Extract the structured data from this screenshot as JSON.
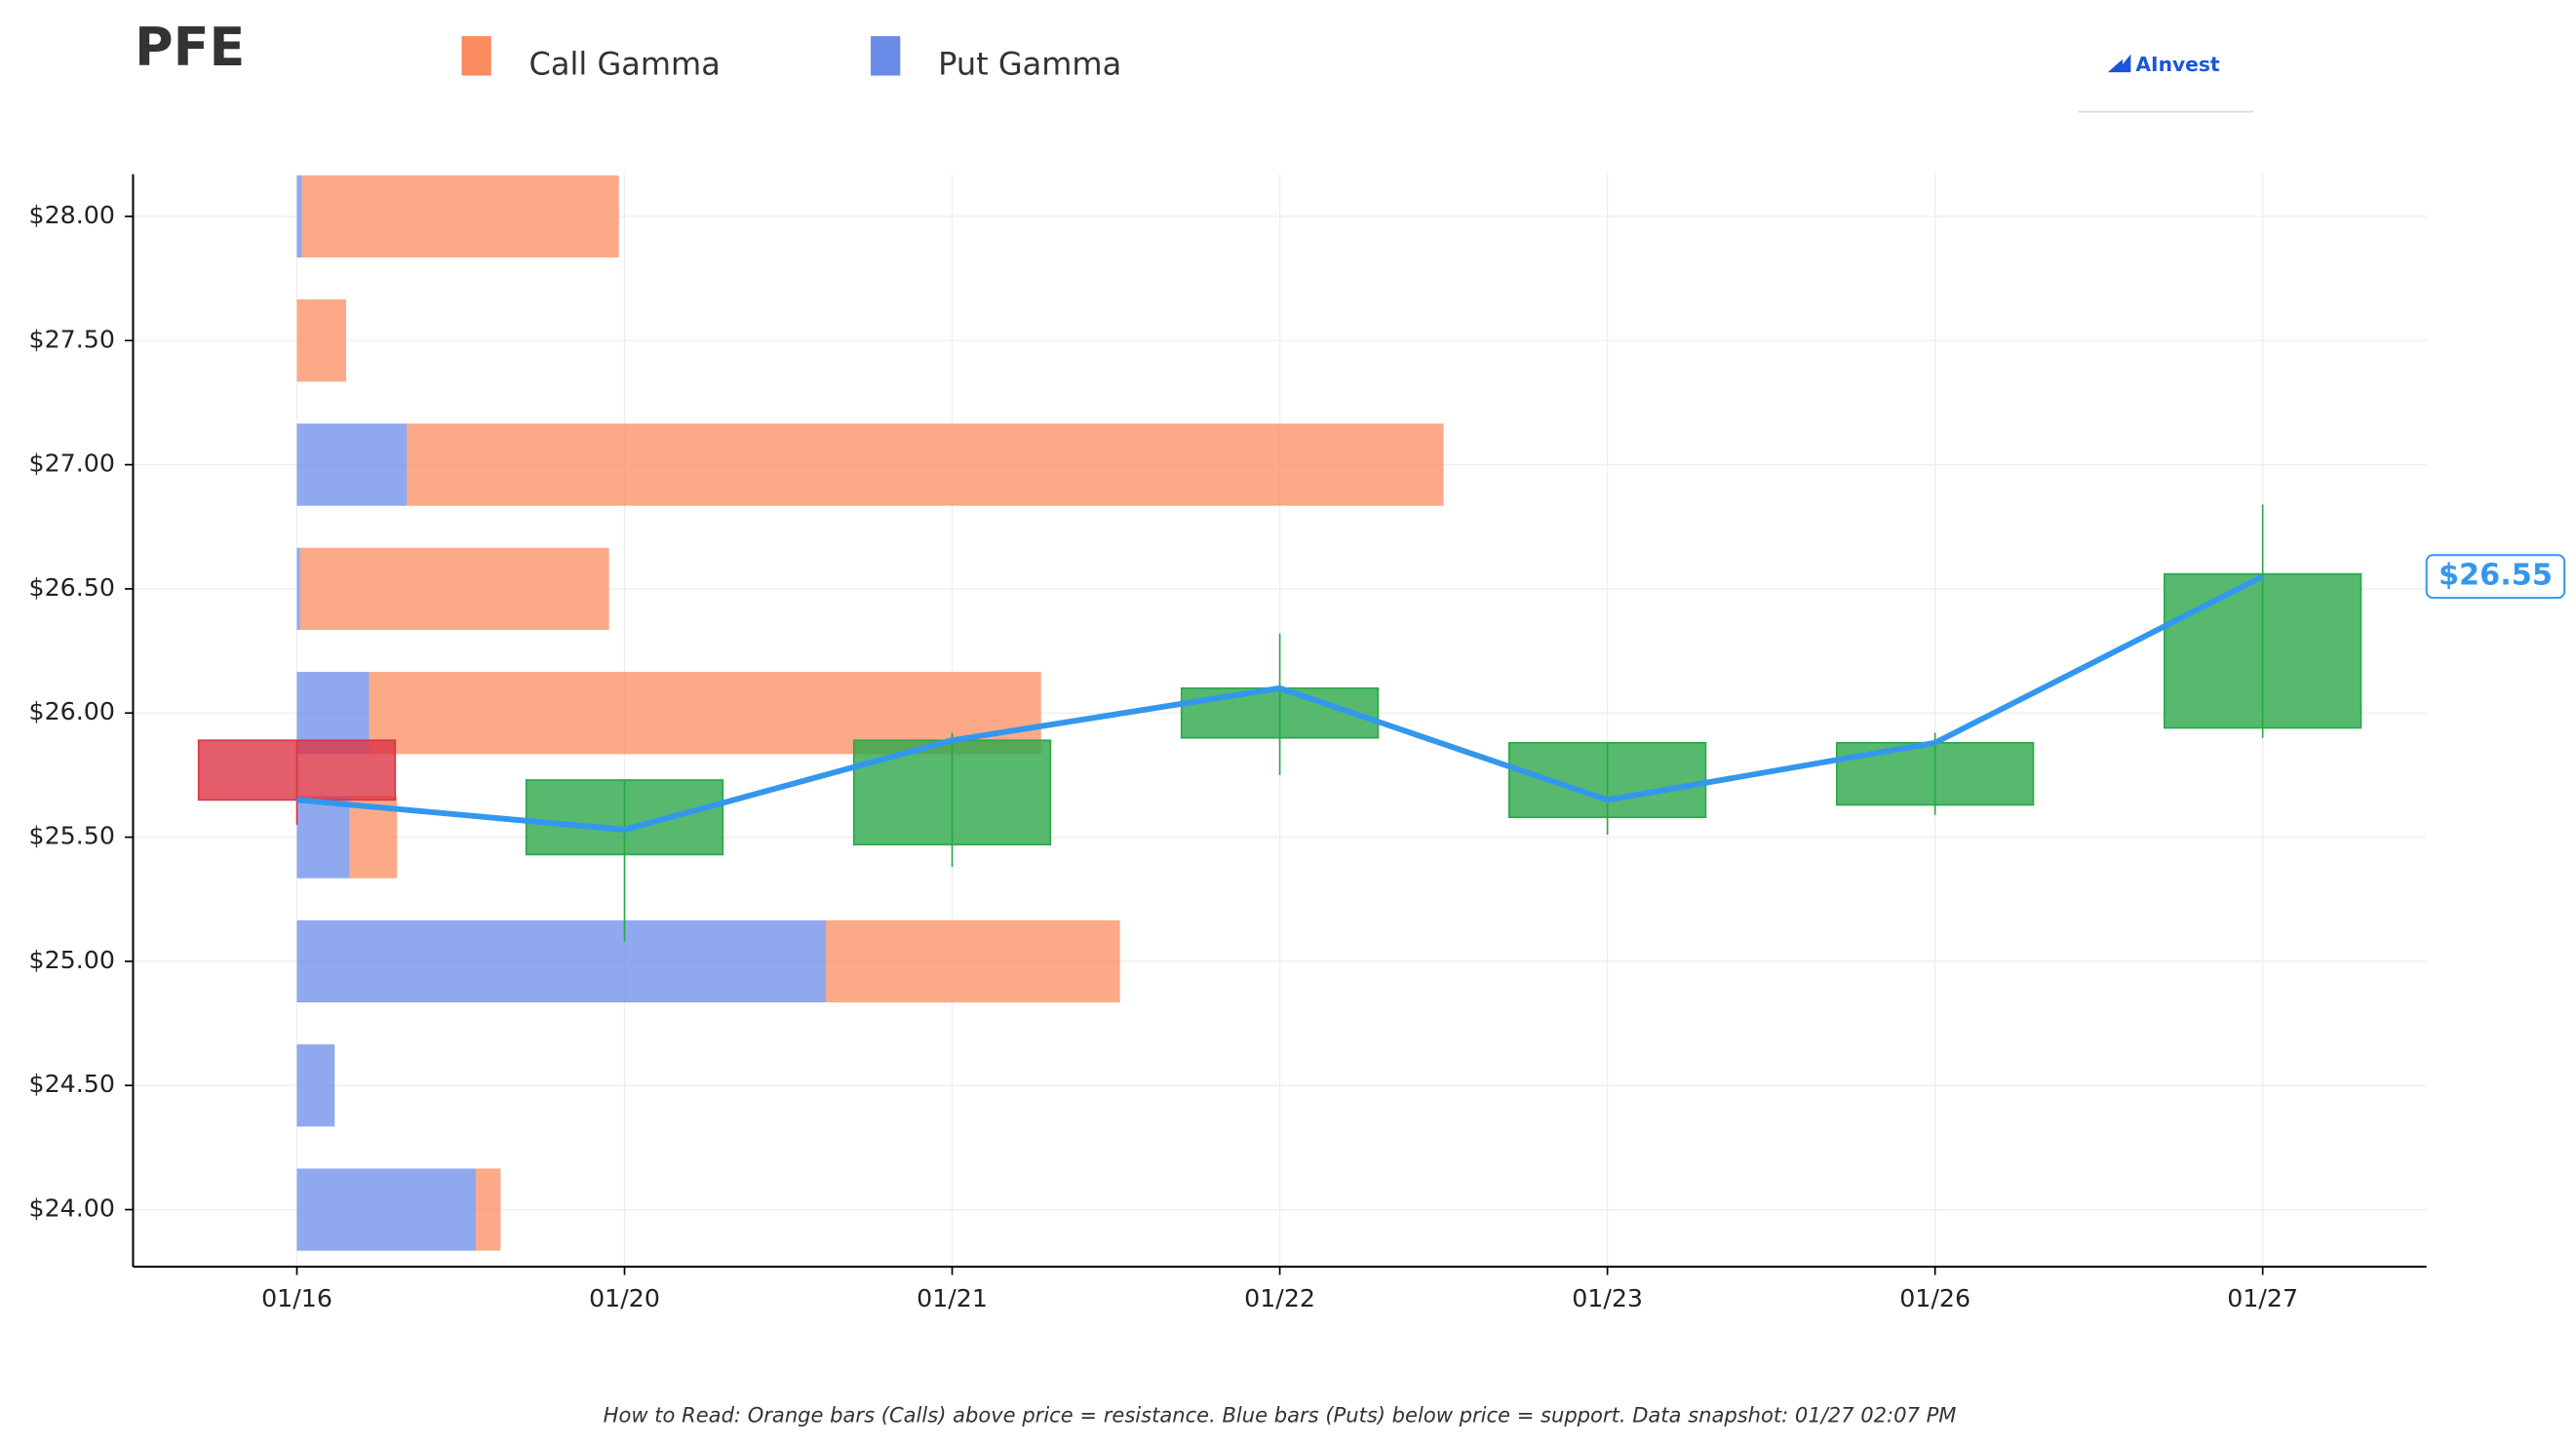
{
  "chart_data": {
    "type": "candlestick",
    "title": "PFE",
    "legend": [
      {
        "name": "Call Gamma",
        "color": "#fa8c5f"
      },
      {
        "name": "Put Gamma",
        "color": "#6b8be8"
      }
    ],
    "logo": "AInvest",
    "footnote": "How to Read: Orange bars (Calls) above price = resistance. Blue bars (Puts) below price = support. Data snapshot: 01/27 02:07 PM",
    "categories": [
      "01/16",
      "01/20",
      "01/21",
      "01/22",
      "01/23",
      "01/26",
      "01/27"
    ],
    "open": [
      25.89,
      25.43,
      25.47,
      25.9,
      25.58,
      25.63,
      25.94
    ],
    "high": [
      25.89,
      25.73,
      25.92,
      26.32,
      25.88,
      25.92,
      26.84
    ],
    "low": [
      25.55,
      25.08,
      25.38,
      25.75,
      25.51,
      25.59,
      25.9
    ],
    "close": [
      25.65,
      25.73,
      25.89,
      26.1,
      25.88,
      25.88,
      26.56
    ],
    "up_color": "#2ca84a",
    "down_color": "#dc3545",
    "price_line": {
      "color": "#3497ee",
      "values": [
        25.65,
        25.53,
        25.89,
        26.1,
        25.65,
        25.88,
        26.55
      ],
      "value_labels": [
        null,
        null,
        null,
        null,
        null,
        null,
        "$26.55"
      ]
    },
    "gamma": {
      "strikes": [
        28,
        27.5,
        27,
        26.5,
        26,
        25.5,
        25,
        24.5,
        24
      ],
      "put": [
        3,
        0,
        67,
        2,
        44,
        32,
        322,
        23,
        109
      ],
      "call": [
        193,
        30,
        631,
        188,
        409,
        29,
        179,
        0,
        15
      ]
    },
    "ylim": [
      23.77,
      28.17
    ],
    "yticks": [
      {
        "value": 24,
        "label": "$24.00"
      },
      {
        "value": 24.5,
        "label": "$24.50"
      },
      {
        "value": 25,
        "label": "$25.00"
      },
      {
        "value": 25.5,
        "label": "$25.50"
      },
      {
        "value": 26,
        "label": "$26.00"
      },
      {
        "value": 26.5,
        "label": "$26.50"
      },
      {
        "value": 27,
        "label": "$27.00"
      },
      {
        "value": 27.5,
        "label": "$27.50"
      },
      {
        "value": 28,
        "label": "$28.00"
      }
    ],
    "grid": true
  }
}
